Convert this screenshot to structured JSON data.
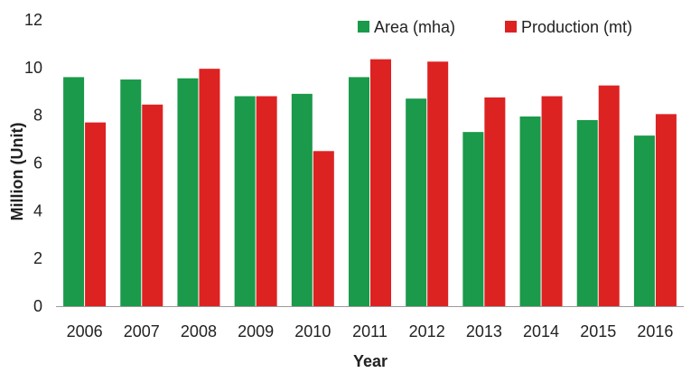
{
  "chart_data": {
    "type": "bar",
    "title": "",
    "xlabel": "Year",
    "ylabel": "Million (Unit)",
    "ylim": [
      0,
      12
    ],
    "yticks": [
      0,
      2,
      4,
      6,
      8,
      10,
      12
    ],
    "grid": false,
    "legend_position": "top-right",
    "categories": [
      "2006",
      "2007",
      "2008",
      "2009",
      "2010",
      "2011",
      "2012",
      "2013",
      "2014",
      "2015",
      "2016"
    ],
    "series": [
      {
        "name": "Area (mha)",
        "color": "#1a9a4a",
        "values": [
          9.6,
          9.5,
          9.55,
          8.8,
          8.9,
          9.6,
          8.7,
          7.3,
          7.95,
          7.8,
          7.15
        ]
      },
      {
        "name": "Production (mt)",
        "color": "#dd2222",
        "values": [
          7.7,
          8.45,
          9.95,
          8.8,
          6.5,
          10.35,
          10.25,
          8.75,
          8.8,
          9.25,
          8.05
        ]
      }
    ]
  }
}
